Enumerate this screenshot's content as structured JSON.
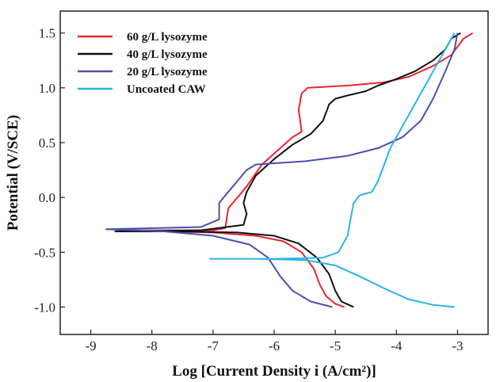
{
  "chart_data": {
    "type": "line",
    "title": "",
    "xlabel": "Log [Current Density i (A/cm²)]",
    "ylabel": "Potential (V/SCE)",
    "xlim": [
      -9.5,
      -2.5
    ],
    "ylim": [
      -1.25,
      1.7
    ],
    "x_ticks": [
      -9,
      -8,
      -7,
      -6,
      -5,
      -4,
      -3
    ],
    "x_tick_labels": [
      "-9",
      "-8",
      "-7",
      "-6",
      "-5",
      "-4",
      "-3"
    ],
    "y_ticks": [
      -1.0,
      -0.5,
      0.0,
      0.5,
      1.0,
      1.5
    ],
    "y_tick_labels": [
      "-1.0",
      "-0.5",
      "0.0",
      "0.5",
      "1.0",
      "1.5"
    ],
    "grid": false,
    "legend": "top-left",
    "series": [
      {
        "name": "60 g/L lysozyme",
        "color": "#e8262e",
        "points": [
          [
            -4.85,
            -1.0
          ],
          [
            -5.0,
            -0.97
          ],
          [
            -5.15,
            -0.9
          ],
          [
            -5.25,
            -0.8
          ],
          [
            -5.35,
            -0.65
          ],
          [
            -5.55,
            -0.5
          ],
          [
            -5.85,
            -0.4
          ],
          [
            -6.3,
            -0.35
          ],
          [
            -7.0,
            -0.32
          ],
          [
            -8.5,
            -0.3
          ],
          [
            -7.0,
            -0.3
          ],
          [
            -6.8,
            -0.28
          ],
          [
            -6.75,
            -0.1
          ],
          [
            -6.6,
            0.0
          ],
          [
            -6.45,
            0.1
          ],
          [
            -6.2,
            0.3
          ],
          [
            -5.9,
            0.45
          ],
          [
            -5.7,
            0.55
          ],
          [
            -5.55,
            0.6
          ],
          [
            -5.6,
            0.8
          ],
          [
            -5.55,
            0.95
          ],
          [
            -5.45,
            1.0
          ],
          [
            -4.8,
            1.02
          ],
          [
            -4.2,
            1.05
          ],
          [
            -3.8,
            1.1
          ],
          [
            -3.4,
            1.2
          ],
          [
            -3.1,
            1.3
          ],
          [
            -2.9,
            1.45
          ],
          [
            -2.75,
            1.5
          ]
        ]
      },
      {
        "name": "40 g/L lysozyme",
        "color": "#111111",
        "points": [
          [
            -4.7,
            -1.0
          ],
          [
            -4.9,
            -0.95
          ],
          [
            -5.0,
            -0.85
          ],
          [
            -5.1,
            -0.7
          ],
          [
            -5.3,
            -0.55
          ],
          [
            -5.6,
            -0.42
          ],
          [
            -6.0,
            -0.35
          ],
          [
            -6.6,
            -0.32
          ],
          [
            -7.5,
            -0.31
          ],
          [
            -8.6,
            -0.31
          ],
          [
            -7.2,
            -0.3
          ],
          [
            -6.5,
            -0.25
          ],
          [
            -6.45,
            -0.15
          ],
          [
            -6.5,
            -0.05
          ],
          [
            -6.45,
            0.05
          ],
          [
            -6.3,
            0.2
          ],
          [
            -6.0,
            0.35
          ],
          [
            -5.7,
            0.48
          ],
          [
            -5.4,
            0.58
          ],
          [
            -5.2,
            0.7
          ],
          [
            -5.1,
            0.85
          ],
          [
            -5.0,
            0.9
          ],
          [
            -4.8,
            0.93
          ],
          [
            -4.5,
            0.97
          ],
          [
            -4.3,
            1.02
          ],
          [
            -4.0,
            1.08
          ],
          [
            -3.7,
            1.15
          ],
          [
            -3.4,
            1.25
          ],
          [
            -3.2,
            1.35
          ],
          [
            -3.1,
            1.45
          ],
          [
            -2.95,
            1.5
          ]
        ]
      },
      {
        "name": "20 g/L lysozyme",
        "color": "#4a4fb0",
        "points": [
          [
            -5.05,
            -1.0
          ],
          [
            -5.4,
            -0.95
          ],
          [
            -5.7,
            -0.85
          ],
          [
            -5.9,
            -0.72
          ],
          [
            -6.1,
            -0.55
          ],
          [
            -6.4,
            -0.43
          ],
          [
            -7.0,
            -0.35
          ],
          [
            -7.8,
            -0.31
          ],
          [
            -8.75,
            -0.29
          ],
          [
            -7.2,
            -0.27
          ],
          [
            -6.9,
            -0.2
          ],
          [
            -6.9,
            -0.05
          ],
          [
            -6.75,
            0.05
          ],
          [
            -6.6,
            0.15
          ],
          [
            -6.45,
            0.25
          ],
          [
            -6.3,
            0.3
          ],
          [
            -5.5,
            0.33
          ],
          [
            -4.8,
            0.38
          ],
          [
            -4.3,
            0.45
          ],
          [
            -3.9,
            0.55
          ],
          [
            -3.6,
            0.7
          ],
          [
            -3.4,
            0.9
          ],
          [
            -3.2,
            1.15
          ],
          [
            -3.05,
            1.35
          ],
          [
            -3.0,
            1.5
          ]
        ]
      },
      {
        "name": "Uncoated CAW",
        "color": "#2ab4ea",
        "points": [
          [
            -3.05,
            -1.0
          ],
          [
            -3.4,
            -0.98
          ],
          [
            -3.8,
            -0.93
          ],
          [
            -4.2,
            -0.83
          ],
          [
            -4.6,
            -0.72
          ],
          [
            -5.0,
            -0.62
          ],
          [
            -5.5,
            -0.57
          ],
          [
            -6.3,
            -0.56
          ],
          [
            -7.05,
            -0.56
          ],
          [
            -6.0,
            -0.56
          ],
          [
            -5.2,
            -0.55
          ],
          [
            -4.95,
            -0.5
          ],
          [
            -4.8,
            -0.35
          ],
          [
            -4.75,
            -0.2
          ],
          [
            -4.7,
            -0.05
          ],
          [
            -4.6,
            0.02
          ],
          [
            -4.4,
            0.05
          ],
          [
            -4.3,
            0.15
          ],
          [
            -4.2,
            0.3
          ],
          [
            -4.1,
            0.45
          ],
          [
            -3.95,
            0.6
          ],
          [
            -3.7,
            0.85
          ],
          [
            -3.45,
            1.1
          ],
          [
            -3.25,
            1.3
          ],
          [
            -3.05,
            1.5
          ]
        ]
      }
    ]
  }
}
